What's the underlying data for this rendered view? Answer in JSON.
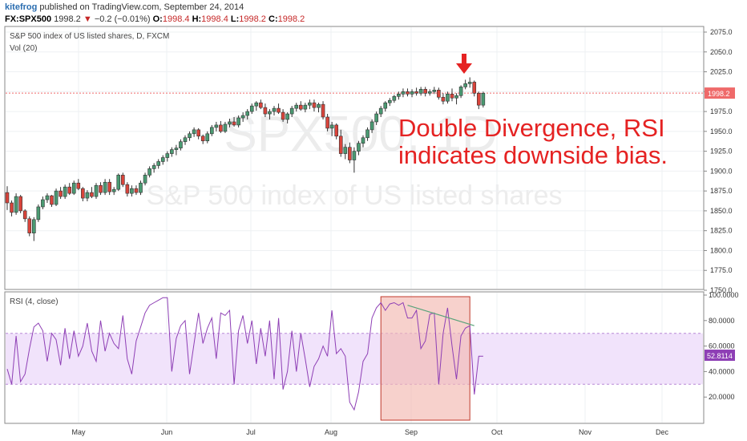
{
  "header": {
    "author": "kitefrog",
    "published_text": "published on TradingView.com, September 24, 2014",
    "symbol": "FX:SPX500",
    "last": "1998.2",
    "change": "−0.2 (−0.01%)",
    "ohlc": [
      {
        "k": "O:",
        "v": "1998.4"
      },
      {
        "k": "H:",
        "v": "1998.4"
      },
      {
        "k": "L:",
        "v": "1998.2"
      },
      {
        "k": "C:",
        "v": "1998.2"
      }
    ]
  },
  "main_pane": {
    "title": "S&P 500 index of US listed shares, D, FXCM",
    "volume_label": "Vol (20)",
    "watermark_symbol": "SPX500, 1D",
    "watermark_name": "S&P 500 index of US listed shares",
    "last_price_label": "1998.2"
  },
  "annotation": {
    "line1": "Double Divergence, RSI",
    "line2": "indicates downside bias."
  },
  "rsi_pane": {
    "label": "RSI (4, close)",
    "last_value_label": "52.8114"
  },
  "colors": {
    "up": "#4a9a72",
    "down": "#d9443b",
    "rsi_line": "#8e3fb5",
    "rsi_band": "#f1e3fb",
    "last_price": "#ef6a6a",
    "annotation": "#e52222",
    "highlight": "#f2b8b0",
    "divergence_line": "#58a27a"
  },
  "chart_data": [
    {
      "type": "candlestick",
      "price_axis": {
        "min": 1750,
        "max": 2075,
        "ticks": [
          "2075.0",
          "2050.0",
          "2025.0",
          "2000.0",
          "1975.0",
          "1950.0",
          "1925.0",
          "1900.0",
          "1875.0",
          "1850.0",
          "1825.0",
          "1800.0",
          "1775.0",
          "1750.0"
        ]
      },
      "time_axis": [
        "May",
        "Jun",
        "Jul",
        "Aug",
        "Sep",
        "Oct",
        "Nov",
        "Dec"
      ],
      "last_price": 1998.2,
      "ohlc_daily": [
        [
          1873,
          1881,
          1851,
          1860
        ],
        [
          1860,
          1863,
          1843,
          1848
        ],
        [
          1848,
          1872,
          1845,
          1868
        ],
        [
          1868,
          1870,
          1847,
          1850
        ],
        [
          1850,
          1852,
          1836,
          1840
        ],
        [
          1840,
          1843,
          1818,
          1822
        ],
        [
          1822,
          1842,
          1812,
          1839
        ],
        [
          1839,
          1858,
          1836,
          1855
        ],
        [
          1855,
          1868,
          1852,
          1864
        ],
        [
          1864,
          1872,
          1860,
          1869
        ],
        [
          1869,
          1870,
          1855,
          1858
        ],
        [
          1858,
          1878,
          1856,
          1875
        ],
        [
          1875,
          1880,
          1865,
          1868
        ],
        [
          1868,
          1883,
          1865,
          1880
        ],
        [
          1880,
          1885,
          1870,
          1872
        ],
        [
          1872,
          1888,
          1870,
          1885
        ],
        [
          1885,
          1890,
          1876,
          1878
        ],
        [
          1878,
          1880,
          1862,
          1866
        ],
        [
          1866,
          1876,
          1862,
          1873
        ],
        [
          1873,
          1880,
          1866,
          1868
        ],
        [
          1868,
          1885,
          1865,
          1882
        ],
        [
          1882,
          1886,
          1870,
          1873
        ],
        [
          1873,
          1890,
          1870,
          1886
        ],
        [
          1886,
          1890,
          1870,
          1874
        ],
        [
          1874,
          1880,
          1870,
          1877
        ],
        [
          1877,
          1897,
          1875,
          1895
        ],
        [
          1895,
          1898,
          1880,
          1883
        ],
        [
          1883,
          1886,
          1868,
          1872
        ],
        [
          1872,
          1882,
          1868,
          1878
        ],
        [
          1878,
          1882,
          1870,
          1873
        ],
        [
          1873,
          1888,
          1870,
          1885
        ],
        [
          1885,
          1898,
          1882,
          1895
        ],
        [
          1895,
          1906,
          1892,
          1903
        ],
        [
          1903,
          1910,
          1898,
          1907
        ],
        [
          1907,
          1915,
          1903,
          1912
        ],
        [
          1912,
          1920,
          1908,
          1917
        ],
        [
          1917,
          1925,
          1912,
          1922
        ],
        [
          1922,
          1930,
          1918,
          1927
        ],
        [
          1927,
          1933,
          1920,
          1929
        ],
        [
          1929,
          1940,
          1926,
          1937
        ],
        [
          1937,
          1945,
          1933,
          1942
        ],
        [
          1942,
          1950,
          1938,
          1947
        ],
        [
          1947,
          1955,
          1943,
          1952
        ],
        [
          1952,
          1954,
          1940,
          1944
        ],
        [
          1944,
          1946,
          1934,
          1938
        ],
        [
          1938,
          1950,
          1935,
          1947
        ],
        [
          1947,
          1958,
          1944,
          1955
        ],
        [
          1955,
          1962,
          1950,
          1958
        ],
        [
          1958,
          1963,
          1948,
          1950
        ],
        [
          1950,
          1962,
          1948,
          1959
        ],
        [
          1959,
          1966,
          1955,
          1962
        ],
        [
          1962,
          1968,
          1956,
          1958
        ],
        [
          1958,
          1970,
          1955,
          1967
        ],
        [
          1967,
          1974,
          1962,
          1970
        ],
        [
          1970,
          1978,
          1965,
          1975
        ],
        [
          1975,
          1985,
          1972,
          1982
        ],
        [
          1982,
          1988,
          1976,
          1986
        ],
        [
          1986,
          1990,
          1978,
          1980
        ],
        [
          1980,
          1985,
          1968,
          1972
        ],
        [
          1972,
          1978,
          1965,
          1975
        ],
        [
          1975,
          1982,
          1970,
          1979
        ],
        [
          1979,
          1985,
          1972,
          1974
        ],
        [
          1974,
          1978,
          1962,
          1965
        ],
        [
          1965,
          1974,
          1960,
          1972
        ],
        [
          1972,
          1982,
          1968,
          1979
        ],
        [
          1979,
          1986,
          1975,
          1983
        ],
        [
          1983,
          1988,
          1976,
          1978
        ],
        [
          1978,
          1986,
          1974,
          1983
        ],
        [
          1983,
          1990,
          1978,
          1986
        ],
        [
          1986,
          1990,
          1975,
          1980
        ],
        [
          1980,
          1986,
          1974,
          1984
        ],
        [
          1984,
          1988,
          1965,
          1968
        ],
        [
          1968,
          1972,
          1950,
          1954
        ],
        [
          1954,
          1962,
          1944,
          1958
        ],
        [
          1958,
          1960,
          1940,
          1944
        ],
        [
          1944,
          1952,
          1918,
          1922
        ],
        [
          1922,
          1934,
          1915,
          1930
        ],
        [
          1930,
          1936,
          1910,
          1914
        ],
        [
          1914,
          1930,
          1898,
          1925
        ],
        [
          1925,
          1938,
          1920,
          1935
        ],
        [
          1935,
          1945,
          1930,
          1942
        ],
        [
          1942,
          1955,
          1938,
          1952
        ],
        [
          1952,
          1965,
          1948,
          1962
        ],
        [
          1962,
          1975,
          1958,
          1972
        ],
        [
          1972,
          1982,
          1968,
          1979
        ],
        [
          1979,
          1988,
          1975,
          1986
        ],
        [
          1986,
          1992,
          1982,
          1989
        ],
        [
          1989,
          1996,
          1986,
          1994
        ],
        [
          1994,
          2000,
          1990,
          1997
        ],
        [
          1997,
          2004,
          1993,
          2000
        ],
        [
          2000,
          2004,
          1994,
          1997
        ],
        [
          1997,
          2003,
          1993,
          2000
        ],
        [
          2000,
          2005,
          1995,
          1998
        ],
        [
          1998,
          2006,
          1995,
          2003
        ],
        [
          2003,
          2006,
          1994,
          1998
        ],
        [
          1998,
          2003,
          1995,
          2000
        ],
        [
          2000,
          2006,
          1997,
          2002
        ],
        [
          2002,
          2005,
          1990,
          1993
        ],
        [
          1993,
          1998,
          1984,
          1988
        ],
        [
          1988,
          2000,
          1985,
          1997
        ],
        [
          1997,
          2004,
          1988,
          1992
        ],
        [
          1992,
          1998,
          1984,
          1995
        ],
        [
          1995,
          2008,
          1992,
          2006
        ],
        [
          2006,
          2015,
          2003,
          2010
        ],
        [
          2010,
          2018,
          2005,
          2012
        ],
        [
          2012,
          2014,
          1994,
          1998
        ],
        [
          1998,
          2000,
          1978,
          1983
        ],
        [
          1983,
          2000,
          1980,
          1998
        ]
      ]
    },
    {
      "type": "line",
      "name": "RSI (4, close)",
      "y_axis": {
        "min": 0,
        "max": 100,
        "ticks": [
          "100.0000",
          "80.0000",
          "60.0000",
          "40.0000",
          "20.0000"
        ]
      },
      "bands": {
        "upper": 70,
        "lower": 30
      },
      "values": [
        42,
        30,
        68,
        32,
        38,
        58,
        75,
        78,
        72,
        48,
        70,
        65,
        45,
        74,
        50,
        72,
        52,
        60,
        78,
        56,
        48,
        80,
        56,
        70,
        62,
        58,
        84,
        50,
        38,
        64,
        75,
        86,
        92,
        94,
        96,
        98,
        98,
        40,
        66,
        76,
        80,
        38,
        62,
        86,
        62,
        74,
        82,
        50,
        86,
        84,
        88,
        30,
        72,
        84,
        62,
        80,
        46,
        74,
        52,
        80,
        34,
        82,
        26,
        40,
        72,
        40,
        70,
        50,
        28,
        44,
        50,
        60,
        52,
        88,
        54,
        58,
        52,
        16,
        10,
        24,
        48,
        54,
        82,
        90,
        94,
        88,
        93,
        94,
        92,
        94,
        82,
        82,
        88,
        58,
        64,
        85,
        86,
        30,
        70,
        90,
        60,
        34,
        68,
        74,
        76,
        22,
        52,
        52
      ],
      "divergence": [
        [
          90,
          92
        ],
        [
          105,
          76
        ]
      ],
      "highlight_range": [
        84,
        104
      ]
    }
  ]
}
